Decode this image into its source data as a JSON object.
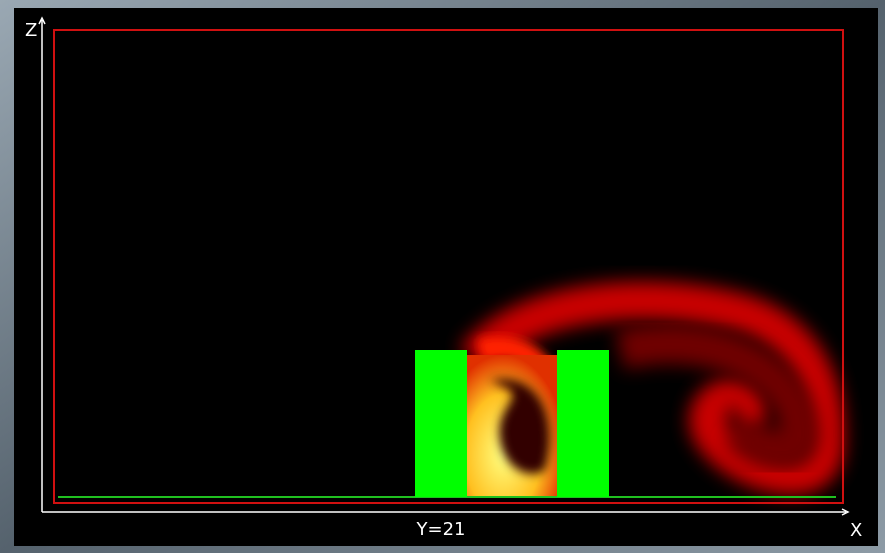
{
  "axes": {
    "vertical_label": "Z",
    "horizontal_label": "X"
  },
  "slice_label": "Y=21"
}
